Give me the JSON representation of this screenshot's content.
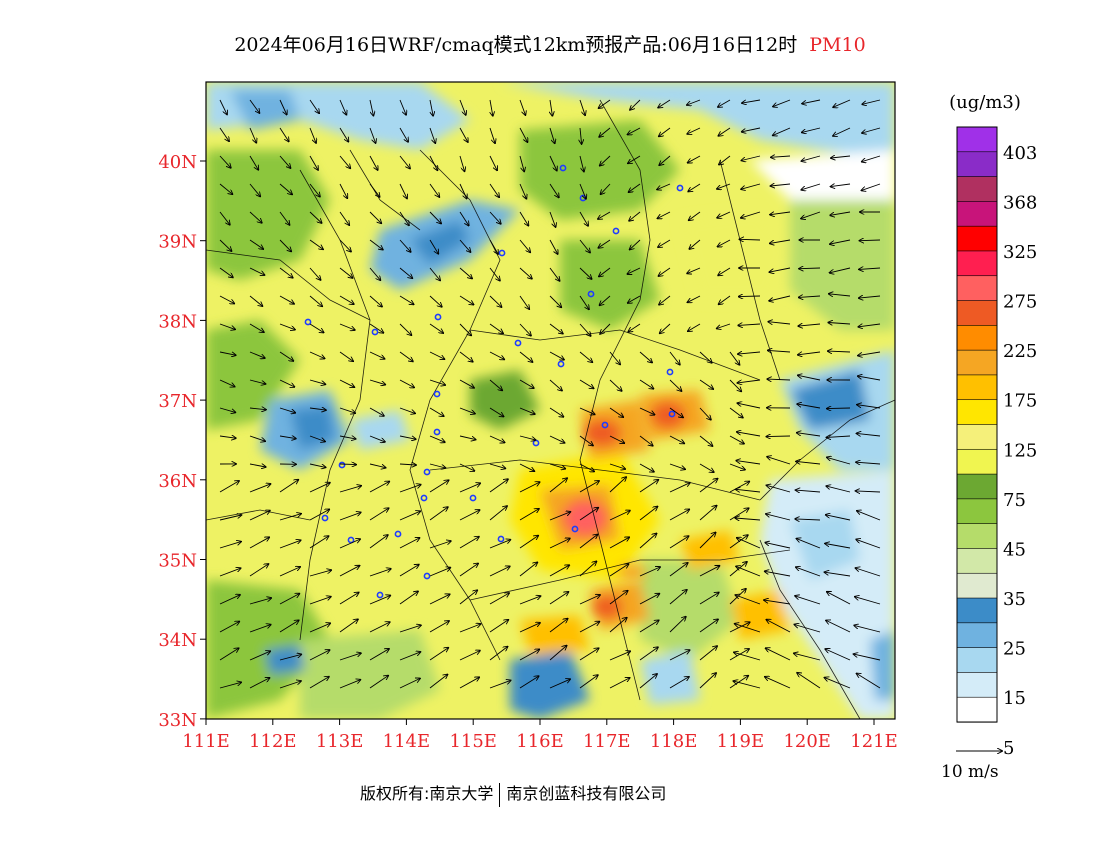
{
  "title": {
    "main": "2024年06月16日WRF/cmaq模式12km预报产品:06月16日12时",
    "variable": "PM10"
  },
  "axes": {
    "lat_labels": [
      "40N",
      "39N",
      "38N",
      "37N",
      "36N",
      "35N",
      "34N",
      "33N"
    ],
    "lon_labels": [
      "111E",
      "112E",
      "113E",
      "114E",
      "115E",
      "116E",
      "117E",
      "118E",
      "119E",
      "120E",
      "121E"
    ],
    "label_color": "#e8262b"
  },
  "legend": {
    "unit": "(ug/m3)",
    "labels": [
      "403",
      "368",
      "325",
      "275",
      "225",
      "175",
      "125",
      "75",
      "45",
      "35",
      "25",
      "15",
      "5"
    ],
    "colors": [
      "#a030e8",
      "#8a2cc8",
      "#b03060",
      "#c8147a",
      "#ff0000",
      "#ff1f50",
      "#ff6060",
      "#ee5a24",
      "#ff8c00",
      "#f5a623",
      "#ffc000",
      "#ffe600",
      "#f5f07a",
      "#f0f550",
      "#6ca832",
      "#8cc63e",
      "#b5dc6a",
      "#d2e8a8",
      "#e0ead0",
      "#3c8cc8",
      "#6fb2e0",
      "#a8d8f0",
      "#d4ecf8",
      "#ffffff"
    ]
  },
  "wind_scale": {
    "label": "10 m/s"
  },
  "footer": {
    "left": "版权所有:南京大学",
    "right": "南京创蓝科技有限公司"
  }
}
